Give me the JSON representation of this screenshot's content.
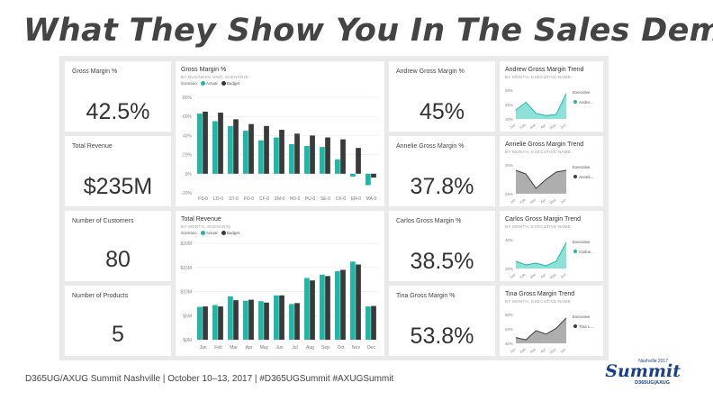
{
  "slide": {
    "title": "What They Show You In The Sales Demo",
    "footer": "D365UG/AXUG Summit Nashville | October 10–13, 2017 | #D365UGSummit  #AXUGSummit",
    "logo": {
      "top": "Nashville 2017",
      "word": "Summit",
      "sub": "D365UG|AXUG"
    }
  },
  "colors": {
    "actual": "#1bb8a8",
    "budget": "#3a3a3a",
    "trend_fill": "#6fd9cf",
    "trend_fill_dark": "#9a9a9a"
  },
  "kpis": [
    {
      "label": "Gross Margin %",
      "value": "42.5%"
    },
    {
      "label": "Total Revenue",
      "value": "$235M"
    },
    {
      "label": "Number of Customers",
      "value": "80"
    },
    {
      "label": "Number of Products",
      "value": "5"
    }
  ],
  "people": [
    {
      "kpi_label": "Andrew Gross Margin %",
      "kpi_value": "45%",
      "trend_title": "Andrew Gross Margin Trend",
      "trend_sub": "BY MONTH, EXECUTIVE NAME",
      "legend_title": "Executive",
      "legend_name": "Andre...",
      "y_ticks": [
        "50%",
        "40%",
        "30%"
      ],
      "values": [
        33,
        40,
        30,
        28,
        29,
        48
      ],
      "dark": false
    },
    {
      "kpi_label": "Annelie Gross Margin %",
      "kpi_value": "37.8%",
      "trend_title": "Annelie Gross Margin Trend",
      "trend_sub": "BY MONTH, EXECUTIVE NAME",
      "legend_title": "Executive",
      "legend_name": "Anneli...",
      "y_ticks": [
        "30%",
        "25%"
      ],
      "values": [
        33,
        31,
        23,
        28,
        32,
        33
      ],
      "dark": true
    },
    {
      "kpi_label": "Carlos Gross Margin %",
      "kpi_value": "38.5%",
      "trend_title": "Carlos Gross Margin Trend",
      "trend_sub": "BY MONTH, EXECUTIVE NAME",
      "legend_title": "Executive",
      "legend_name": "Carlos...",
      "y_ticks": [
        "40%",
        "20%"
      ],
      "values": [
        22,
        18,
        20,
        17,
        22,
        43
      ],
      "dark": false
    },
    {
      "kpi_label": "Tina Gross Margin %",
      "kpi_value": "53.8%",
      "trend_title": "Tina Gross Margin Trend",
      "trend_sub": "BY MONTH, EXECUTIVE NAME",
      "legend_title": "Executive",
      "legend_name": "Tina L...",
      "y_ticks": [
        "60%",
        "50%",
        "40%"
      ],
      "values": [
        42,
        40,
        48,
        45,
        50,
        59
      ],
      "dark": true
    }
  ],
  "trend_months": [
    "Jan",
    "Feb",
    "Mar",
    "Apr",
    "May",
    "Jun"
  ],
  "chart_data": [
    {
      "type": "bar",
      "title": "Gross Margin %",
      "subtitle": "BY BUSINESS UNIT, SCENARIO",
      "legend_label": "Scenario",
      "categories": [
        "FS-0",
        "LO-0",
        "ST-0",
        "FO-0",
        "CF-0",
        "SM-0",
        "HO-0",
        "PU-0",
        "SE-0",
        "CK-0",
        "ER-0",
        "MA-0"
      ],
      "series": [
        {
          "name": "Actual",
          "values": [
            63,
            55,
            50,
            45,
            35,
            38,
            31,
            29,
            28,
            15,
            -3,
            -12
          ]
        },
        {
          "name": "Budget",
          "values": [
            65,
            64,
            57,
            52,
            50,
            46,
            42,
            40,
            38,
            36,
            27,
            -4
          ]
        }
      ],
      "y_ticks": [
        "80%",
        "60%",
        "40%",
        "20%",
        "0%",
        "-20%"
      ],
      "ylim": [
        -20,
        80
      ]
    },
    {
      "type": "bar",
      "title": "Total Revenue",
      "subtitle": "BY MONTH, SCENARIO",
      "legend_label": "Scenario",
      "categories": [
        "Jan",
        "Feb",
        "Mar",
        "Apr",
        "May",
        "Jun",
        "Jul",
        "Aug",
        "Sep",
        "Oct",
        "Nov",
        "Dec"
      ],
      "series": [
        {
          "name": "Actual",
          "values": [
            6.8,
            7.2,
            9.0,
            8.1,
            8.0,
            9.2,
            7.4,
            12.8,
            13.5,
            14.2,
            16.2,
            6.9
          ]
        },
        {
          "name": "Budget",
          "values": [
            6.9,
            6.9,
            8.2,
            8.3,
            7.7,
            9.2,
            7.6,
            12.3,
            13.2,
            14.5,
            15.6,
            7.0
          ]
        }
      ],
      "y_ticks": [
        "$20M",
        "$15M",
        "$10M",
        "$5M",
        "$0M"
      ],
      "ylim": [
        0,
        20
      ]
    }
  ]
}
